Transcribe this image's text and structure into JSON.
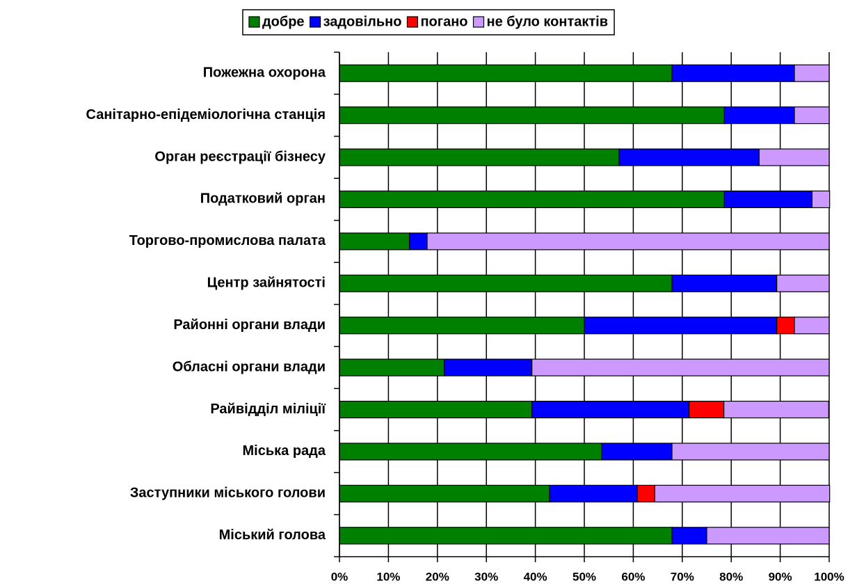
{
  "chart_data": {
    "type": "stacked-bar-horizontal",
    "categories": [
      "Пожежна охорона",
      "Санітарно-епідеміологічна станція",
      "Орган реєстрації бізнесу",
      "Податковий орган",
      "Торгово-промислова палата",
      "Центр зайнятості",
      "Районні органи влади",
      "Обласні органи влади",
      "Райвідділ міліції",
      "Міська рада",
      "Заступники міського голови",
      "Міський голова"
    ],
    "series": [
      {
        "name": "добре",
        "color": "#008000",
        "values": [
          67.9,
          78.6,
          57.1,
          78.6,
          14.3,
          67.9,
          50,
          21.4,
          39.3,
          53.6,
          42.9,
          67.9
        ]
      },
      {
        "name": "задовільно",
        "color": "#0000ff",
        "values": [
          25,
          14.3,
          28.6,
          17.9,
          3.6,
          21.4,
          39.3,
          17.9,
          32.1,
          14.3,
          17.9,
          7.1
        ]
      },
      {
        "name": "погано",
        "color": "#ff0000",
        "values": [
          0,
          0,
          0,
          0,
          0,
          0,
          3.6,
          0,
          7.1,
          0,
          3.6,
          0
        ]
      },
      {
        "name": "не було контактів",
        "color": "#cc99ff",
        "values": [
          7.1,
          7.1,
          14.3,
          3.6,
          82.1,
          10.7,
          7.1,
          60.7,
          21.4,
          32.1,
          35.7,
          25
        ]
      }
    ],
    "xlim": [
      0,
      100
    ],
    "xticks": [
      {
        "value": 0,
        "label": "0%"
      },
      {
        "value": 10,
        "label": "10%"
      },
      {
        "value": 20,
        "label": "20%"
      },
      {
        "value": 30,
        "label": "30%"
      },
      {
        "value": 40,
        "label": "40%"
      },
      {
        "value": 50,
        "label": "50%"
      },
      {
        "value": 60,
        "label": "60%"
      },
      {
        "value": 70,
        "label": "70%"
      },
      {
        "value": 80,
        "label": "80%"
      },
      {
        "value": 90,
        "label": "90%"
      },
      {
        "value": 100,
        "label": "100%"
      }
    ],
    "grid": true,
    "legend": "top"
  }
}
